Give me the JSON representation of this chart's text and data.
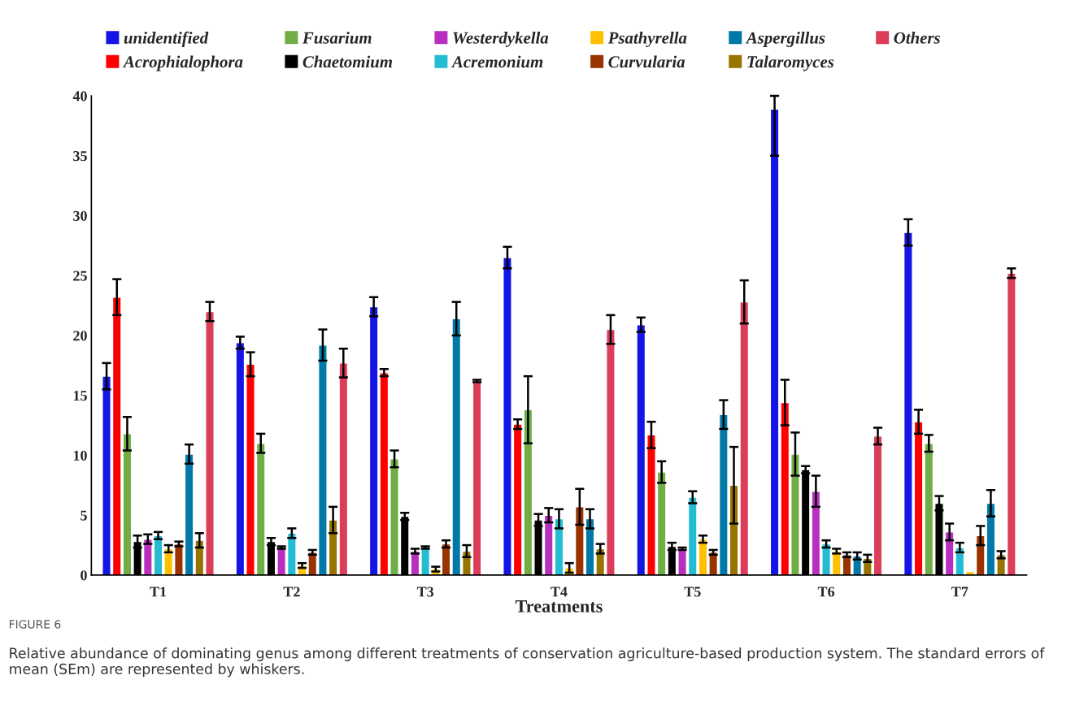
{
  "chart_data": {
    "type": "bar",
    "xlabel": "Treatments",
    "categories": [
      "T1",
      "T2",
      "T3",
      "T4",
      "T5",
      "T6",
      "T7"
    ],
    "ylim": [
      0,
      40
    ],
    "yticks": [
      0,
      5,
      10,
      15,
      20,
      25,
      30,
      35,
      40
    ],
    "grid": false,
    "legend": "top",
    "series": [
      {
        "name": "unidentified",
        "color": "#1414e6",
        "values": [
          16.6,
          19.4,
          22.4,
          26.5,
          20.9,
          38.9,
          28.6
        ],
        "errors": [
          1.1,
          0.5,
          0.8,
          0.9,
          0.6,
          [
            35.0,
            40
          ],
          1.1
        ]
      },
      {
        "name": "Acrophialophora",
        "color": "#ff0000",
        "values": [
          23.2,
          17.6,
          16.9,
          12.6,
          11.7,
          14.4,
          12.8
        ],
        "errors": [
          1.5,
          1.0,
          0.3,
          0.4,
          1.1,
          1.9,
          1.0
        ]
      },
      {
        "name": "Fusarium",
        "color": "#70ad47",
        "values": [
          11.8,
          11.0,
          9.7,
          13.8,
          8.6,
          10.1,
          11.0
        ],
        "errors": [
          1.4,
          0.8,
          0.7,
          2.8,
          0.9,
          1.8,
          0.7
        ]
      },
      {
        "name": "Chaetomium",
        "color": "#000000",
        "values": [
          2.8,
          2.8,
          4.9,
          4.6,
          2.4,
          8.8,
          6.0
        ],
        "errors": [
          0.5,
          0.3,
          0.3,
          0.5,
          0.3,
          0.3,
          0.6
        ]
      },
      {
        "name": "Westerdykella",
        "color": "#b82fc0",
        "values": [
          3.0,
          2.3,
          2.0,
          5.0,
          2.2,
          7.0,
          3.6
        ],
        "errors": [
          0.4,
          0.1,
          0.2,
          0.6,
          0.1,
          1.3,
          0.7
        ]
      },
      {
        "name": "Acremonium",
        "color": "#23bcd3",
        "values": [
          3.3,
          3.5,
          2.3,
          4.7,
          6.5,
          2.6,
          2.3
        ],
        "errors": [
          0.3,
          0.4,
          0.1,
          0.8,
          0.5,
          0.3,
          0.4
        ]
      },
      {
        "name": "Psathyrella",
        "color": "#ffc000",
        "values": [
          2.2,
          0.8,
          0.5,
          0.6,
          3.0,
          2.0,
          0.3
        ],
        "errors": [
          0.3,
          0.2,
          0.2,
          0.4,
          0.3,
          0.2,
          null
        ]
      },
      {
        "name": "Curvularia",
        "color": "#993300",
        "values": [
          2.6,
          1.9,
          2.6,
          5.7,
          1.9,
          1.7,
          3.3
        ],
        "errors": [
          0.2,
          0.2,
          0.3,
          1.5,
          0.2,
          0.2,
          0.8
        ]
      },
      {
        "name": "Aspergillus",
        "color": "#0079a8",
        "values": [
          10.1,
          19.2,
          21.4,
          4.7,
          13.4,
          1.6,
          6.0
        ],
        "errors": [
          0.8,
          1.3,
          1.4,
          0.8,
          1.2,
          0.3,
          1.1
        ]
      },
      {
        "name": "Talaromyces",
        "color": "#977300",
        "values": [
          2.9,
          4.6,
          2.0,
          2.2,
          7.5,
          1.4,
          1.7
        ],
        "errors": [
          0.6,
          1.1,
          0.5,
          0.4,
          3.2,
          0.3,
          0.3
        ]
      },
      {
        "name": "Others",
        "color": "#dc3d58",
        "values": [
          22.0,
          17.7,
          16.2,
          20.5,
          22.8,
          11.6,
          25.2
        ],
        "errors": [
          0.8,
          1.2,
          0.1,
          1.2,
          1.8,
          0.7,
          0.4
        ]
      }
    ],
    "annotations": [
      "FIGURE 6",
      "Relative abundance of dominating genus among different treatments of conservation agriculture-based production system. The standard errors of mean (SEm) are represented by whiskers."
    ]
  }
}
